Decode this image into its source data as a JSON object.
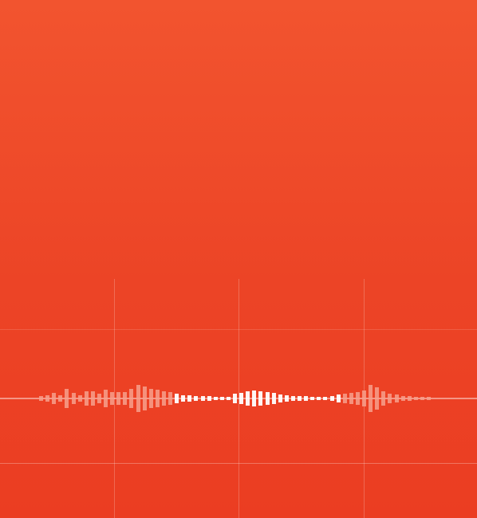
{
  "app": {
    "colors": {
      "background_top": "#f2542f",
      "background_bottom": "#eb3d22",
      "waveform_bright": "#ffffff",
      "waveform_dim": "#f7a08c"
    }
  },
  "waveform": {
    "levels": [
      0.15,
      0.2,
      0.35,
      0.2,
      0.6,
      0.35,
      0.2,
      0.45,
      0.45,
      0.3,
      0.55,
      0.4,
      0.4,
      0.4,
      0.6,
      0.85,
      0.75,
      0.6,
      0.55,
      0.45,
      0.4,
      0.3,
      0.2,
      0.18,
      0.15,
      0.15,
      0.15,
      0.12,
      0.12,
      0.1,
      0.3,
      0.35,
      0.45,
      0.5,
      0.45,
      0.4,
      0.35,
      0.25,
      0.2,
      0.15,
      0.15,
      0.15,
      0.12,
      0.12,
      0.12,
      0.15,
      0.25,
      0.3,
      0.35,
      0.4,
      0.5,
      0.85,
      0.7,
      0.45,
      0.3,
      0.25,
      0.15,
      0.15,
      0.12,
      0.1,
      0.08
    ],
    "bright_range": [
      21,
      46
    ]
  }
}
